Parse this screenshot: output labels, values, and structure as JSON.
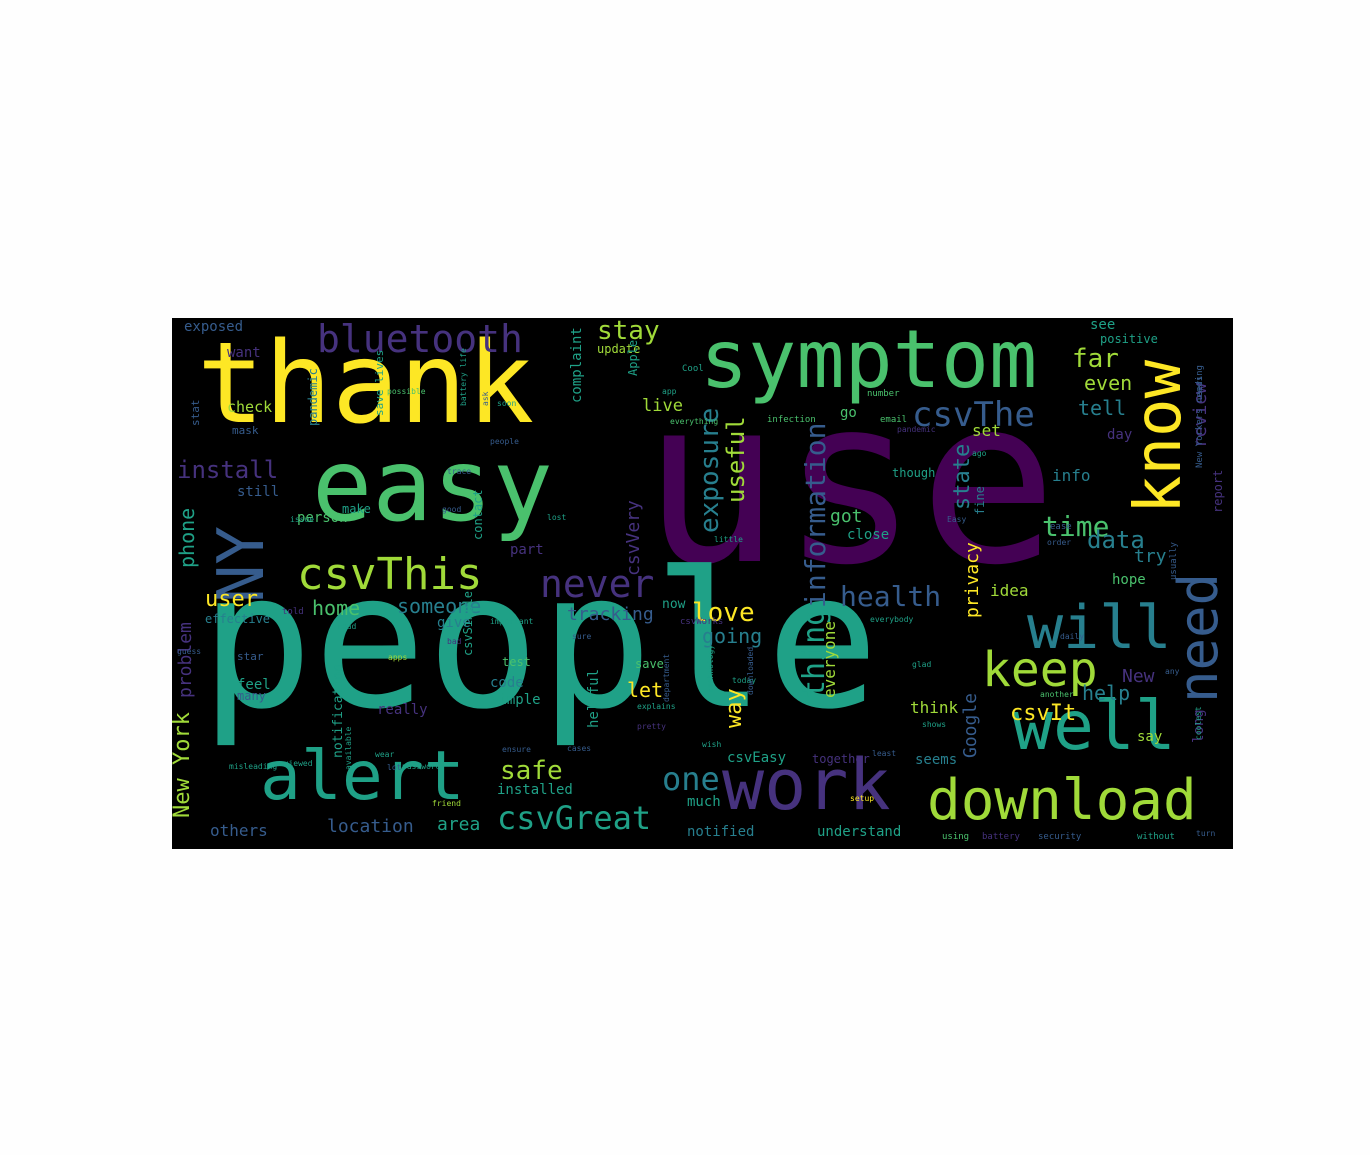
{
  "palette": {
    "yellow": "#fde725",
    "lightgreen": "#a0da39",
    "green": "#4ac16d",
    "teal": "#1fa187",
    "blue": "#277f8e",
    "slate": "#365c8d",
    "indigo": "#46327e",
    "purple": "#440154"
  },
  "words": [
    {
      "text": "use",
      "color": "purple"
    },
    {
      "text": "people",
      "color": "teal"
    },
    {
      "text": "thank",
      "color": "yellow"
    },
    {
      "text": "easy",
      "color": "green"
    },
    {
      "text": "symptom",
      "color": "green"
    },
    {
      "text": "know",
      "color": "yellow"
    },
    {
      "text": "work",
      "color": "indigo"
    },
    {
      "text": "download",
      "color": "lightgreen"
    },
    {
      "text": "well",
      "color": "teal"
    },
    {
      "text": "alert",
      "color": "teal"
    },
    {
      "text": "need",
      "color": "slate"
    },
    {
      "text": "will",
      "color": "blue"
    },
    {
      "text": "keep",
      "color": "lightgreen"
    },
    {
      "text": "csvThis",
      "color": "lightgreen"
    },
    {
      "text": "NY",
      "color": "slate"
    },
    {
      "text": "bluetooth",
      "color": "indigo"
    },
    {
      "text": "never",
      "color": "indigo"
    },
    {
      "text": "csvThe",
      "color": "slate"
    },
    {
      "text": "csvGreat",
      "color": "teal"
    },
    {
      "text": "information",
      "color": "slate"
    },
    {
      "text": "exposure",
      "color": "blue"
    },
    {
      "text": "stay",
      "color": "lightgreen"
    },
    {
      "text": "health",
      "color": "slate"
    },
    {
      "text": "one",
      "color": "blue"
    },
    {
      "text": "safe",
      "color": "lightgreen"
    },
    {
      "text": "install",
      "color": "indigo"
    },
    {
      "text": "thing",
      "color": "teal"
    },
    {
      "text": "way",
      "color": "yellow"
    },
    {
      "text": "love",
      "color": "yellow"
    },
    {
      "text": "useful",
      "color": "lightgreen"
    },
    {
      "text": "time",
      "color": "green"
    },
    {
      "text": "data",
      "color": "blue"
    },
    {
      "text": "state",
      "color": "blue"
    },
    {
      "text": "far",
      "color": "lightgreen"
    },
    {
      "text": "even",
      "color": "lightgreen"
    },
    {
      "text": "tell",
      "color": "blue"
    },
    {
      "text": "review",
      "color": "indigo"
    },
    {
      "text": "csvVery",
      "color": "indigo"
    },
    {
      "text": "New York",
      "color": "lightgreen"
    },
    {
      "text": "problem",
      "color": "indigo"
    },
    {
      "text": "phone",
      "color": "teal"
    },
    {
      "text": "user",
      "color": "yellow"
    },
    {
      "text": "home",
      "color": "green"
    },
    {
      "text": "someone",
      "color": "blue"
    },
    {
      "text": "csvIt",
      "color": "yellow"
    },
    {
      "text": "New",
      "color": "indigo"
    },
    {
      "text": "help",
      "color": "blue"
    },
    {
      "text": "privacy",
      "color": "yellow"
    },
    {
      "text": "Google",
      "color": "slate"
    },
    {
      "text": "got",
      "color": "green"
    },
    {
      "text": "everyone",
      "color": "lightgreen"
    },
    {
      "text": "let",
      "color": "yellow"
    },
    {
      "text": "going",
      "color": "blue"
    },
    {
      "text": "tracking",
      "color": "slate"
    },
    {
      "text": "location",
      "color": "slate"
    },
    {
      "text": "area",
      "color": "teal"
    },
    {
      "text": "others",
      "color": "slate"
    },
    {
      "text": "notified",
      "color": "blue"
    },
    {
      "text": "understand",
      "color": "teal"
    },
    {
      "text": "installed",
      "color": "teal"
    },
    {
      "text": "much",
      "color": "teal"
    },
    {
      "text": "check",
      "color": "lightgreen"
    },
    {
      "text": "live",
      "color": "lightgreen"
    },
    {
      "text": "exposed",
      "color": "slate"
    },
    {
      "text": "want",
      "color": "indigo"
    },
    {
      "text": "complaint",
      "color": "teal"
    },
    {
      "text": "update",
      "color": "lightgreen"
    },
    {
      "text": "Apple",
      "color": "teal"
    },
    {
      "text": "see",
      "color": "teal"
    },
    {
      "text": "positive",
      "color": "teal"
    },
    {
      "text": "idea",
      "color": "lightgreen"
    },
    {
      "text": "info",
      "color": "blue"
    },
    {
      "text": "try",
      "color": "blue"
    },
    {
      "text": "close",
      "color": "teal"
    },
    {
      "text": "set",
      "color": "lightgreen"
    },
    {
      "text": "day",
      "color": "indigo"
    },
    {
      "text": "hope",
      "color": "green"
    },
    {
      "text": "report",
      "color": "indigo"
    },
    {
      "text": "long",
      "color": "indigo"
    },
    {
      "text": "say",
      "color": "lightgreen"
    },
    {
      "text": "think",
      "color": "lightgreen"
    },
    {
      "text": "seems",
      "color": "blue"
    },
    {
      "text": "csvEasy",
      "color": "teal"
    },
    {
      "text": "helpful",
      "color": "teal"
    },
    {
      "text": "code",
      "color": "blue"
    },
    {
      "text": "Simple",
      "color": "teal"
    },
    {
      "text": "give",
      "color": "blue"
    },
    {
      "text": "contact",
      "color": "teal"
    },
    {
      "text": "still",
      "color": "slate"
    },
    {
      "text": "person",
      "color": "green"
    },
    {
      "text": "make",
      "color": "teal"
    },
    {
      "text": "part",
      "color": "indigo"
    },
    {
      "text": "feel",
      "color": "teal"
    },
    {
      "text": "many",
      "color": "slate"
    },
    {
      "text": "really",
      "color": "indigo"
    },
    {
      "text": "effective",
      "color": "blue"
    },
    {
      "text": "notification",
      "color": "teal"
    },
    {
      "text": "star",
      "color": "slate"
    },
    {
      "text": "go",
      "color": "green"
    },
    {
      "text": "now",
      "color": "teal"
    },
    {
      "text": "test",
      "color": "green"
    },
    {
      "text": "save",
      "color": "green"
    },
    {
      "text": "pandemic",
      "color": "blue"
    },
    {
      "text": "save lives",
      "color": "teal"
    },
    {
      "text": "mask",
      "color": "slate"
    },
    {
      "text": "stat",
      "color": "slate"
    },
    {
      "text": "though",
      "color": "teal"
    },
    {
      "text": "fine",
      "color": "blue"
    },
    {
      "text": "together",
      "color": "indigo"
    },
    {
      "text": "infection",
      "color": "green"
    },
    {
      "text": "number",
      "color": "green"
    },
    {
      "text": "email",
      "color": "green"
    },
    {
      "text": "little",
      "color": "teal"
    },
    {
      "text": "order",
      "color": "slate"
    },
    {
      "text": "least",
      "color": "slate"
    },
    {
      "text": "usually",
      "color": "slate"
    },
    {
      "text": "daily",
      "color": "slate"
    },
    {
      "text": "without",
      "color": "teal"
    },
    {
      "text": "turn",
      "color": "slate"
    },
    {
      "text": "battery",
      "color": "indigo"
    },
    {
      "text": "security",
      "color": "slate"
    },
    {
      "text": "using",
      "color": "green"
    },
    {
      "text": "setup",
      "color": "yellow"
    },
    {
      "text": "friend",
      "color": "lightgreen"
    },
    {
      "text": "today",
      "color": "teal"
    },
    {
      "text": "apps",
      "color": "lightgreen"
    },
    {
      "text": "glad",
      "color": "teal"
    },
    {
      "text": "another",
      "color": "green"
    },
    {
      "text": "coolest",
      "color": "teal"
    },
    {
      "text": "cases",
      "color": "slate"
    },
    {
      "text": "wish",
      "color": "teal"
    },
    {
      "text": "everybody",
      "color": "teal"
    },
    {
      "text": "explains",
      "color": "teal"
    },
    {
      "text": "technology",
      "color": "teal"
    },
    {
      "text": "important",
      "color": "teal"
    },
    {
      "text": "everything",
      "color": "green"
    },
    {
      "text": "department",
      "color": "slate"
    },
    {
      "text": "downloaded",
      "color": "slate"
    },
    {
      "text": "available",
      "color": "teal"
    },
    {
      "text": "ensure",
      "color": "slate"
    },
    {
      "text": "pretty",
      "color": "indigo"
    },
    {
      "text": "lot",
      "color": "slate"
    },
    {
      "text": "read",
      "color": "teal"
    },
    {
      "text": "bad",
      "color": "indigo"
    },
    {
      "text": "sure",
      "color": "slate"
    },
    {
      "text": "guess",
      "color": "slate"
    },
    {
      "text": "told",
      "color": "indigo"
    },
    {
      "text": "people",
      "color": "slate"
    },
    {
      "text": "csvWorks",
      "color": "indigo"
    },
    {
      "text": "csvSimple",
      "color": "teal"
    },
    {
      "text": "possible",
      "color": "green"
    },
    {
      "text": "battery life",
      "color": "teal"
    },
    {
      "text": "issue",
      "color": "teal"
    },
    {
      "text": "reviewed",
      "color": "teal"
    },
    {
      "text": "misleading",
      "color": "teal"
    },
    {
      "text": "wear",
      "color": "teal"
    },
    {
      "text": "password",
      "color": "teal"
    },
    {
      "text": "shows",
      "color": "teal"
    },
    {
      "text": "trace",
      "color": "slate"
    },
    {
      "text": "ago",
      "color": "teal"
    },
    {
      "text": "Easy",
      "color": "slate"
    },
    {
      "text": "app",
      "color": "teal"
    },
    {
      "text": "lost",
      "color": "teal"
    },
    {
      "text": "Cool",
      "color": "teal"
    },
    {
      "text": "soon",
      "color": "teal"
    },
    {
      "text": "ask",
      "color": "slate"
    },
    {
      "text": "ease",
      "color": "slate"
    },
    {
      "text": "users",
      "color": "slate"
    },
    {
      "text": "New Yorkers needing",
      "color": "slate"
    },
    {
      "text": "any",
      "color": "slate"
    },
    {
      "text": "pandemic",
      "color": "indigo"
    },
    {
      "text": "good",
      "color": "slate"
    }
  ]
}
